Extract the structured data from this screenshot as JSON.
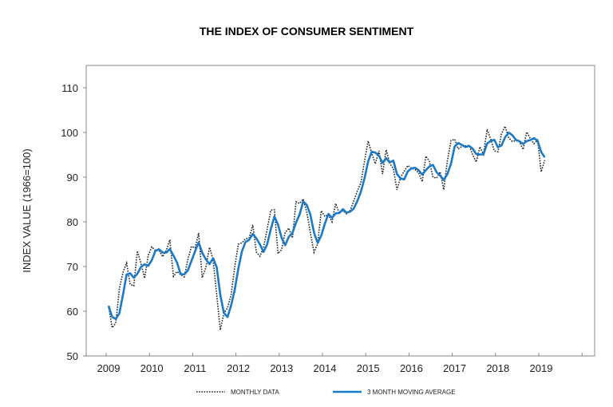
{
  "chart_data": {
    "type": "line",
    "title": "THE INDEX OF CONSUMER SENTIMENT",
    "xlabel": "",
    "ylabel": "INDEX VALUE (1966=100)",
    "ylim": [
      50,
      110
    ],
    "yticks": [
      50,
      60,
      70,
      80,
      90,
      100,
      110
    ],
    "xticks": [
      "2009",
      "2010",
      "2011",
      "2012",
      "2013",
      "2014",
      "2015",
      "2016",
      "2017",
      "2018",
      "2019"
    ],
    "start": "2009-01",
    "frequency": "monthly",
    "grid": false,
    "legend_position": "bottom",
    "colors": {
      "monthly": "#222222",
      "moving_average": "#1a7ac8"
    },
    "series": [
      {
        "name": "MONTHLY DATA",
        "style": "dotted",
        "values": [
          61.2,
          56.3,
          57.3,
          65.1,
          68.7,
          70.8,
          66.0,
          65.7,
          73.5,
          70.6,
          67.4,
          72.5,
          74.4,
          73.6,
          73.6,
          72.2,
          73.6,
          76.0,
          67.8,
          68.9,
          68.2,
          67.7,
          71.6,
          74.5,
          74.2,
          77.5,
          67.5,
          69.8,
          74.3,
          71.5,
          63.7,
          55.8,
          59.5,
          60.8,
          63.7,
          69.9,
          75.0,
          75.3,
          76.2,
          76.4,
          79.3,
          73.2,
          72.3,
          74.3,
          78.3,
          82.6,
          82.7,
          72.9,
          73.8,
          77.6,
          78.6,
          76.4,
          84.5,
          84.1,
          85.1,
          82.1,
          77.5,
          73.2,
          75.1,
          82.5,
          81.2,
          81.6,
          80.0,
          84.1,
          81.9,
          82.5,
          81.8,
          82.5,
          84.6,
          86.9,
          88.8,
          93.6,
          98.1,
          95.4,
          93.0,
          95.9,
          90.7,
          96.1,
          93.1,
          91.9,
          87.2,
          90.0,
          91.3,
          92.6,
          92.0,
          91.7,
          91.0,
          89.0,
          94.7,
          93.5,
          90.0,
          89.8,
          91.2,
          87.2,
          93.8,
          98.2,
          98.5,
          96.3,
          96.9,
          97.0,
          97.1,
          95.0,
          93.4,
          96.8,
          95.1,
          100.7,
          98.5,
          95.9,
          95.7,
          99.7,
          101.4,
          98.8,
          98.0,
          98.2,
          97.9,
          96.2,
          100.1,
          98.6,
          97.5,
          98.3,
          91.2,
          93.8
        ]
      },
      {
        "name": "3 MONTH MOVING AVERAGE",
        "style": "solid",
        "window": 3,
        "derived_from": "MONTHLY DATA"
      }
    ]
  }
}
